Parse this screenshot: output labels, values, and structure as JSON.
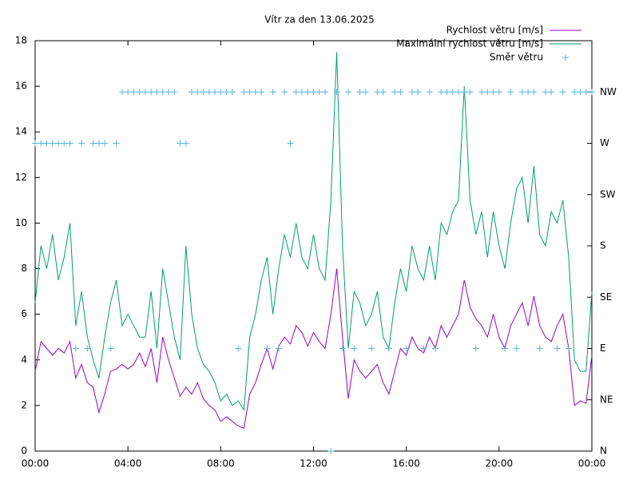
{
  "chart_data": {
    "type": "line",
    "title": "Vítr za den 13.06.2025",
    "x": [
      0,
      0.25,
      0.5,
      0.75,
      1,
      1.25,
      1.5,
      1.75,
      2,
      2.25,
      2.5,
      2.75,
      3,
      3.25,
      3.5,
      3.75,
      4,
      4.25,
      4.5,
      4.75,
      5,
      5.25,
      5.5,
      5.75,
      6,
      6.25,
      6.5,
      6.75,
      7,
      7.25,
      7.5,
      7.75,
      8,
      8.25,
      8.5,
      8.75,
      9,
      9.25,
      9.5,
      9.75,
      10,
      10.25,
      10.5,
      10.75,
      11,
      11.25,
      11.5,
      11.75,
      12,
      12.25,
      12.5,
      12.75,
      13,
      13.25,
      13.5,
      13.75,
      14,
      14.25,
      14.5,
      14.75,
      15,
      15.25,
      15.5,
      15.75,
      16,
      16.25,
      16.5,
      16.75,
      17,
      17.25,
      17.5,
      17.75,
      18,
      18.25,
      18.5,
      18.75,
      19,
      19.25,
      19.5,
      19.75,
      20,
      20.25,
      20.5,
      20.75,
      21,
      21.25,
      21.5,
      21.75,
      22,
      22.25,
      22.5,
      22.75,
      23,
      23.25,
      23.5,
      23.75,
      24
    ],
    "series": [
      {
        "name": "Rychlost větru [m/s]",
        "color": "#9400d3",
        "style": "line",
        "values": [
          3.5,
          4.8,
          4.5,
          4.2,
          4.5,
          4.3,
          4.8,
          3.2,
          3.8,
          3.0,
          2.8,
          1.7,
          2.5,
          3.5,
          3.6,
          3.8,
          3.6,
          3.8,
          4.3,
          3.7,
          4.5,
          3.0,
          5.0,
          4.0,
          3.2,
          2.4,
          2.8,
          2.5,
          3.0,
          2.3,
          2.0,
          1.8,
          1.3,
          1.5,
          1.3,
          1.1,
          1.0,
          2.5,
          3.0,
          3.8,
          4.5,
          3.6,
          4.6,
          5.0,
          4.7,
          5.5,
          5.2,
          4.6,
          5.2,
          4.8,
          4.5,
          6.0,
          8.0,
          5.0,
          2.3,
          4.0,
          3.5,
          3.2,
          3.5,
          3.8,
          3.0,
          2.5,
          3.5,
          4.5,
          4.2,
          5.0,
          4.5,
          4.3,
          5.0,
          4.5,
          5.5,
          5.0,
          5.5,
          6.0,
          7.5,
          6.3,
          5.8,
          5.5,
          5.0,
          6.0,
          5.0,
          4.5,
          5.5,
          6.0,
          6.5,
          5.5,
          6.8,
          5.5,
          5.0,
          4.8,
          5.5,
          6.0,
          4.5,
          2.0,
          2.2,
          2.1,
          4.2
        ]
      },
      {
        "name": "Maximální rychlost větru [m/s]",
        "color": "#009e73",
        "style": "line",
        "values": [
          6.5,
          9.0,
          8.0,
          9.5,
          7.5,
          8.5,
          10.0,
          5.5,
          7.0,
          5.0,
          4.0,
          3.2,
          5.0,
          6.5,
          7.5,
          5.5,
          6.0,
          5.5,
          5.0,
          5.0,
          7.0,
          4.5,
          8.0,
          6.5,
          5.0,
          4.0,
          9.0,
          6.0,
          4.5,
          3.8,
          3.5,
          3.0,
          2.2,
          2.5,
          2.0,
          2.2,
          1.8,
          5.0,
          6.0,
          7.5,
          8.5,
          6.0,
          8.0,
          9.5,
          8.5,
          10.0,
          8.5,
          8.0,
          9.5,
          8.0,
          7.5,
          11.0,
          17.5,
          9.0,
          4.5,
          7.0,
          6.5,
          5.5,
          6.0,
          7.0,
          5.0,
          4.5,
          6.5,
          8.0,
          7.0,
          9.0,
          8.0,
          7.5,
          9.0,
          7.5,
          10.0,
          9.5,
          10.5,
          11.0,
          16.0,
          11.0,
          9.5,
          10.5,
          8.5,
          10.5,
          9.0,
          8.0,
          10.0,
          11.5,
          12.0,
          10.0,
          12.5,
          9.5,
          9.0,
          10.5,
          10.0,
          11.0,
          8.5,
          4.0,
          3.5,
          3.5,
          7.0
        ]
      },
      {
        "name": "Směr větru",
        "color": "#56b4e9",
        "style": "points",
        "axis": "y2",
        "values": [
          270,
          270,
          270,
          270,
          270,
          270,
          270,
          90,
          270,
          90,
          270,
          270,
          270,
          90,
          270,
          315,
          315,
          315,
          315,
          315,
          315,
          315,
          315,
          315,
          315,
          270,
          270,
          315,
          315,
          315,
          315,
          315,
          315,
          315,
          315,
          90,
          315,
          315,
          315,
          315,
          90,
          315,
          90,
          315,
          270,
          315,
          315,
          315,
          315,
          315,
          315,
          0,
          315,
          90,
          315,
          90,
          315,
          315,
          90,
          315,
          315,
          90,
          315,
          315,
          90,
          315,
          315,
          90,
          315,
          90,
          315,
          315,
          315,
          315,
          315,
          315,
          90,
          315,
          315,
          315,
          315,
          90,
          315,
          90,
          315,
          315,
          315,
          90,
          315,
          315,
          90,
          315,
          90,
          315,
          315,
          315,
          315
        ]
      }
    ],
    "xlim": [
      0,
      24
    ],
    "xticks": [
      {
        "value": 0,
        "label": "00:00"
      },
      {
        "value": 4,
        "label": "04:00"
      },
      {
        "value": 8,
        "label": "08:00"
      },
      {
        "value": 12,
        "label": "12:00"
      },
      {
        "value": 16,
        "label": "16:00"
      },
      {
        "value": 20,
        "label": "20:00"
      },
      {
        "value": 24,
        "label": "00:00"
      }
    ],
    "ylim": [
      0,
      18
    ],
    "yticks": [
      0,
      2,
      4,
      6,
      8,
      10,
      12,
      14,
      16,
      18
    ],
    "y2lim": [
      0,
      360
    ],
    "y2ticks": [
      {
        "value": 0,
        "label": "N"
      },
      {
        "value": 45,
        "label": "NE"
      },
      {
        "value": 90,
        "label": "E"
      },
      {
        "value": 135,
        "label": "SE"
      },
      {
        "value": 180,
        "label": "S"
      },
      {
        "value": 225,
        "label": "SW"
      },
      {
        "value": 270,
        "label": "W"
      },
      {
        "value": 315,
        "label": "NW"
      }
    ],
    "legend": "top-right"
  }
}
